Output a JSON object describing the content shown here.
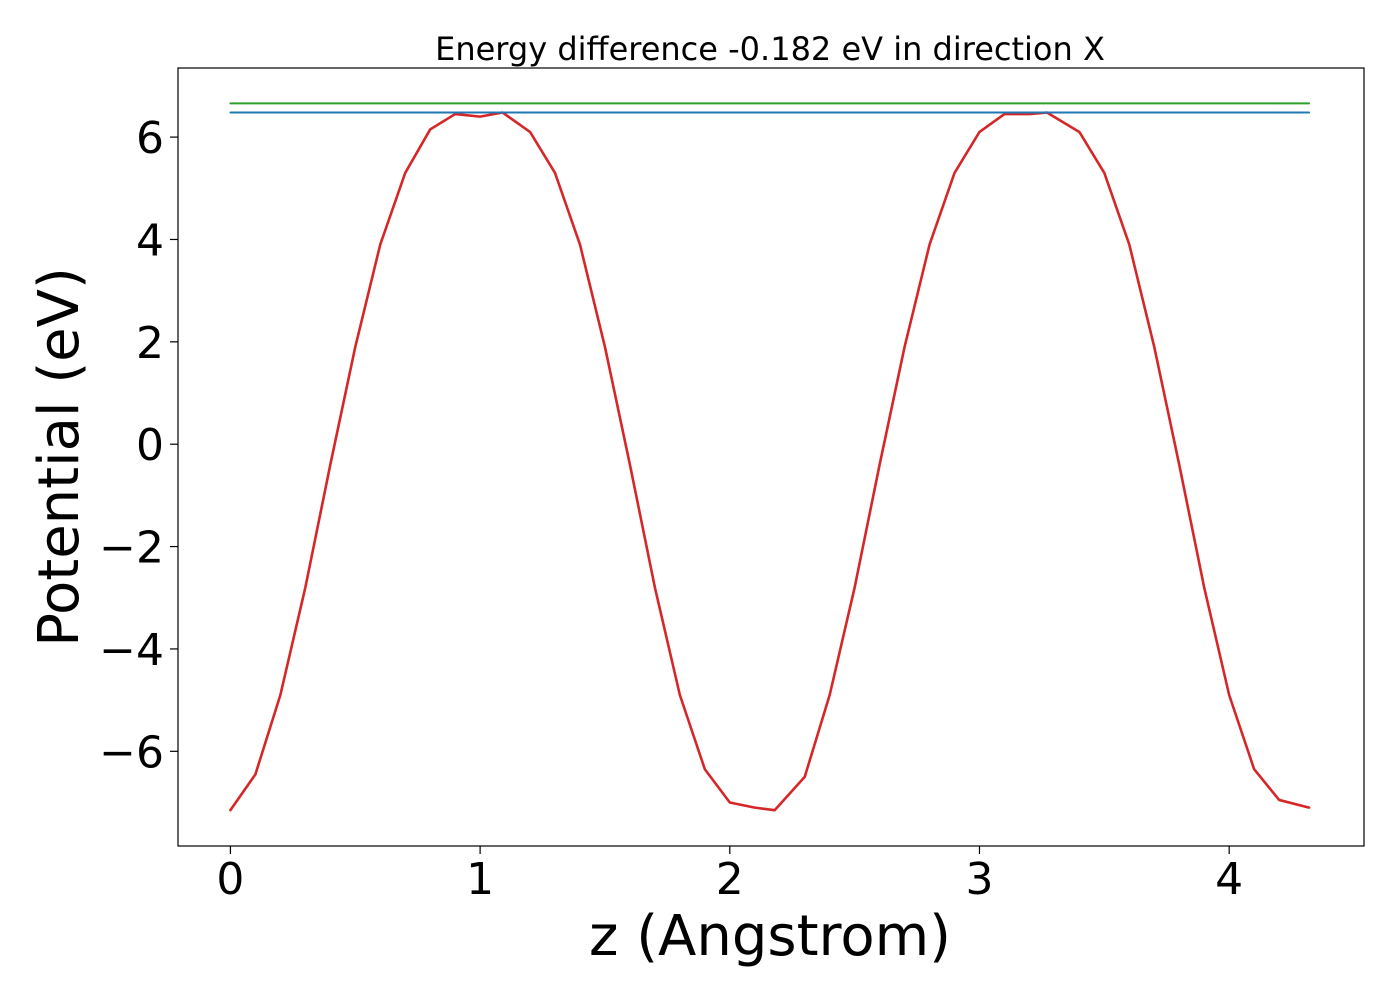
{
  "chart_data": {
    "type": "line",
    "title": "Energy difference -0.182 eV in direction X",
    "xlabel": "z (Angstrom)",
    "ylabel": "Potential (eV)",
    "xlim": [
      -0.21,
      4.54
    ],
    "ylim": [
      -7.85,
      7.35
    ],
    "xticks": [
      0,
      1,
      2,
      3,
      4
    ],
    "yticks": [
      -6,
      -4,
      -2,
      0,
      2,
      4,
      6
    ],
    "xtick_labels": [
      "0",
      "1",
      "2",
      "3",
      "4"
    ],
    "ytick_labels": [
      "−6",
      "−4",
      "−2",
      "0",
      "2",
      "4",
      "6"
    ],
    "grid": false,
    "series": [
      {
        "color": "#d62728",
        "x": [
          0.0,
          0.1,
          0.2,
          0.3,
          0.4,
          0.5,
          0.6,
          0.7,
          0.8,
          0.9,
          1.0,
          1.09,
          1.2,
          1.3,
          1.4,
          1.5,
          1.6,
          1.7,
          1.8,
          1.9,
          2.0,
          2.1,
          2.18,
          2.3,
          2.4,
          2.5,
          2.6,
          2.7,
          2.8,
          2.9,
          3.0,
          3.1,
          3.2,
          3.27,
          3.4,
          3.5,
          3.6,
          3.7,
          3.8,
          3.9,
          4.0,
          4.1,
          4.2,
          4.32
        ],
        "y": [
          -7.15,
          -6.45,
          -4.9,
          -2.8,
          -0.4,
          1.9,
          3.9,
          5.3,
          6.15,
          6.45,
          6.4,
          6.48,
          6.1,
          5.3,
          3.9,
          1.9,
          -0.4,
          -2.8,
          -4.9,
          -6.35,
          -7.0,
          -7.1,
          -7.15,
          -6.5,
          -4.9,
          -2.8,
          -0.4,
          1.9,
          3.9,
          5.3,
          6.1,
          6.45,
          6.45,
          6.48,
          6.1,
          5.3,
          3.9,
          1.9,
          -0.4,
          -2.8,
          -4.9,
          -6.35,
          -6.95,
          -7.1
        ]
      },
      {
        "color": "#1f77b4",
        "x": [
          0.0,
          4.32
        ],
        "y": [
          6.48,
          6.48
        ]
      },
      {
        "color": "#2ca02c",
        "x": [
          0.0,
          4.32
        ],
        "y": [
          6.66,
          6.66
        ]
      }
    ]
  }
}
